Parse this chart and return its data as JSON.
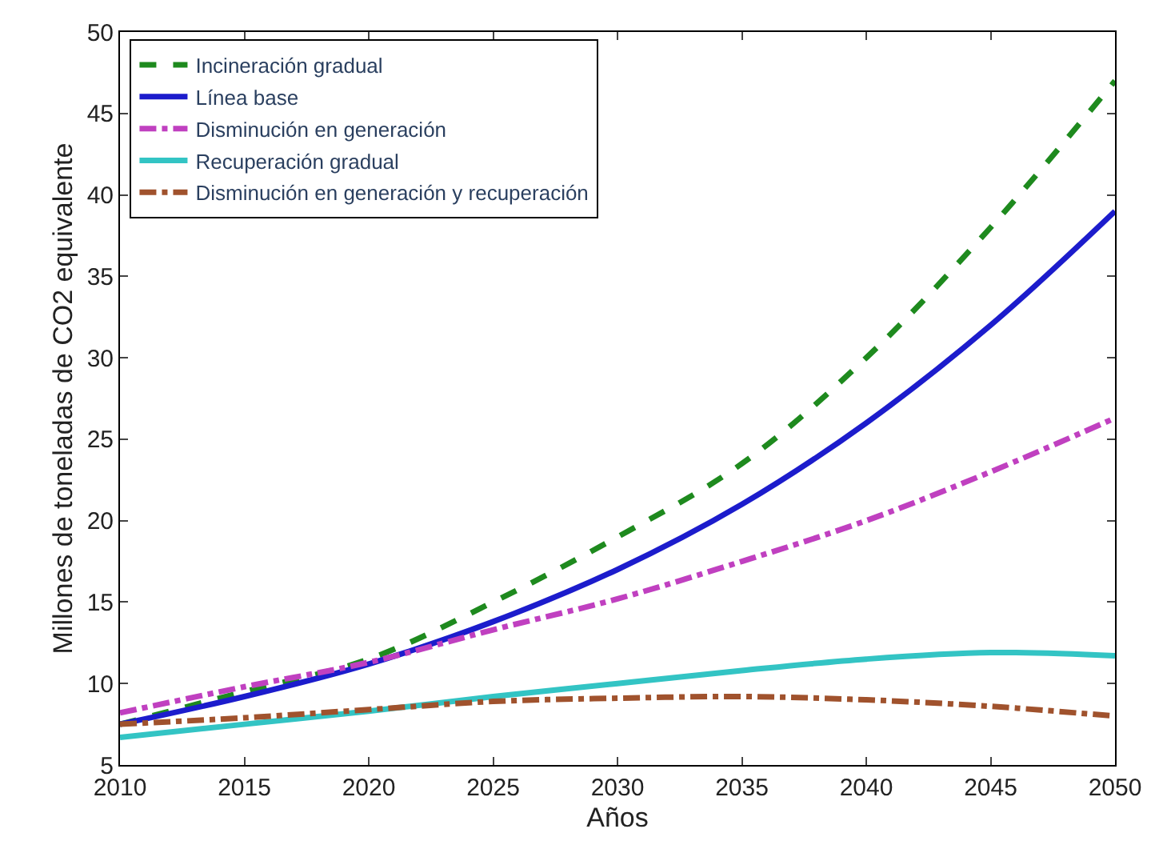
{
  "chart_data": {
    "type": "line",
    "xlabel": "Años",
    "ylabel": "Millones de toneladas de CO2 equivalente",
    "x": [
      2010,
      2015,
      2020,
      2025,
      2030,
      2035,
      2040,
      2045,
      2050
    ],
    "series": [
      {
        "name": "Incineración gradual",
        "color": "#1e8a1e",
        "line_style": "dashed",
        "values": [
          7.5,
          9.5,
          11.5,
          15,
          19,
          23.5,
          30,
          38,
          47
        ]
      },
      {
        "name": "Línea base",
        "color": "#1c1ccc",
        "line_style": "solid",
        "values": [
          7.5,
          9.2,
          11.2,
          13.8,
          17,
          21,
          26,
          32,
          39
        ]
      },
      {
        "name": "Disminución en generación",
        "color": "#c040c0",
        "line_style": "dashdot",
        "values": [
          8.2,
          9.8,
          11.3,
          13.3,
          15.2,
          17.5,
          20,
          23,
          26.3
        ]
      },
      {
        "name": "Recuperación gradual",
        "color": "#33c4c4",
        "line_style": "solid",
        "values": [
          6.7,
          7.5,
          8.3,
          9.2,
          10,
          10.8,
          11.5,
          11.9,
          11.7
        ]
      },
      {
        "name": "Disminución en generación y recuperación",
        "color": "#a0522d",
        "line_style": "dashdot",
        "values": [
          7.5,
          7.9,
          8.4,
          8.9,
          9.1,
          9.2,
          9.0,
          8.6,
          8.0
        ]
      }
    ],
    "xlim": [
      2010,
      2050
    ],
    "xticks": [
      2010,
      2015,
      2020,
      2025,
      2030,
      2035,
      2040,
      2045,
      2050
    ],
    "ylim": [
      5,
      50
    ],
    "yticks": [
      5,
      10,
      15,
      20,
      25,
      30,
      35,
      40,
      45,
      50
    ],
    "legend": "top left",
    "marker": "none"
  }
}
